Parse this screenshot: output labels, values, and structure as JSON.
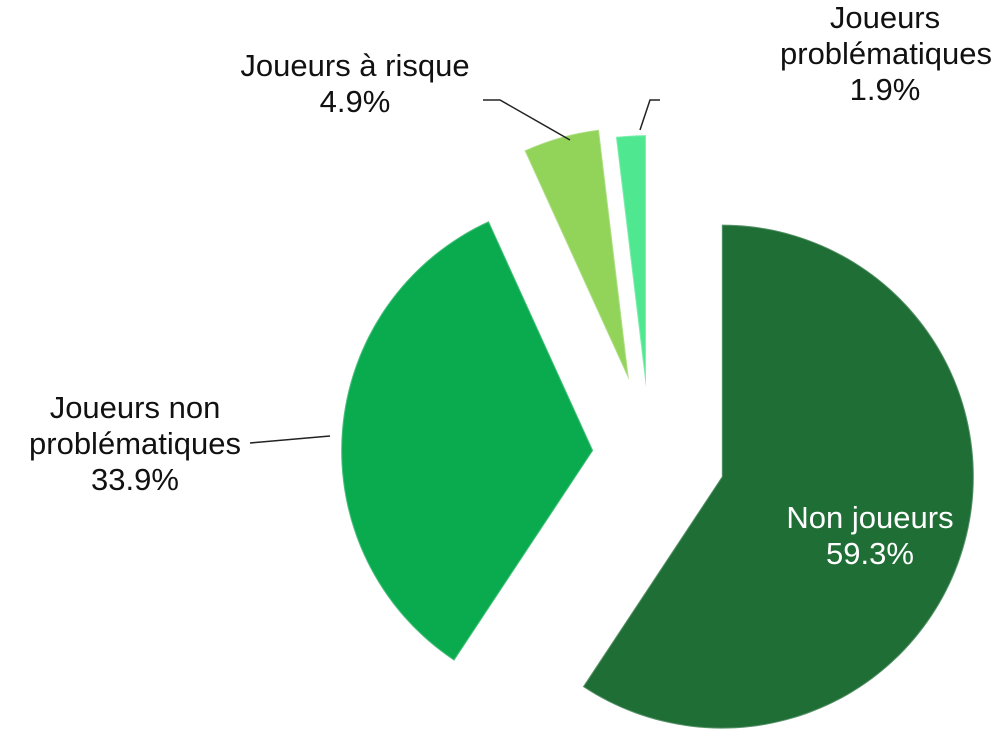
{
  "chart_data": {
    "type": "pie",
    "categories": [
      "Non joueurs",
      "Joueurs non problématiques",
      "Joueurs à risque",
      "Joueurs problématiques"
    ],
    "values": [
      59.3,
      33.9,
      4.9,
      1.9
    ],
    "value_labels": [
      "59.3%",
      "33.9%",
      "4.9%",
      "1.9%"
    ],
    "colors": [
      "#1f6e36",
      "#0aab4f",
      "#92d35a",
      "#4fe890"
    ]
  }
}
